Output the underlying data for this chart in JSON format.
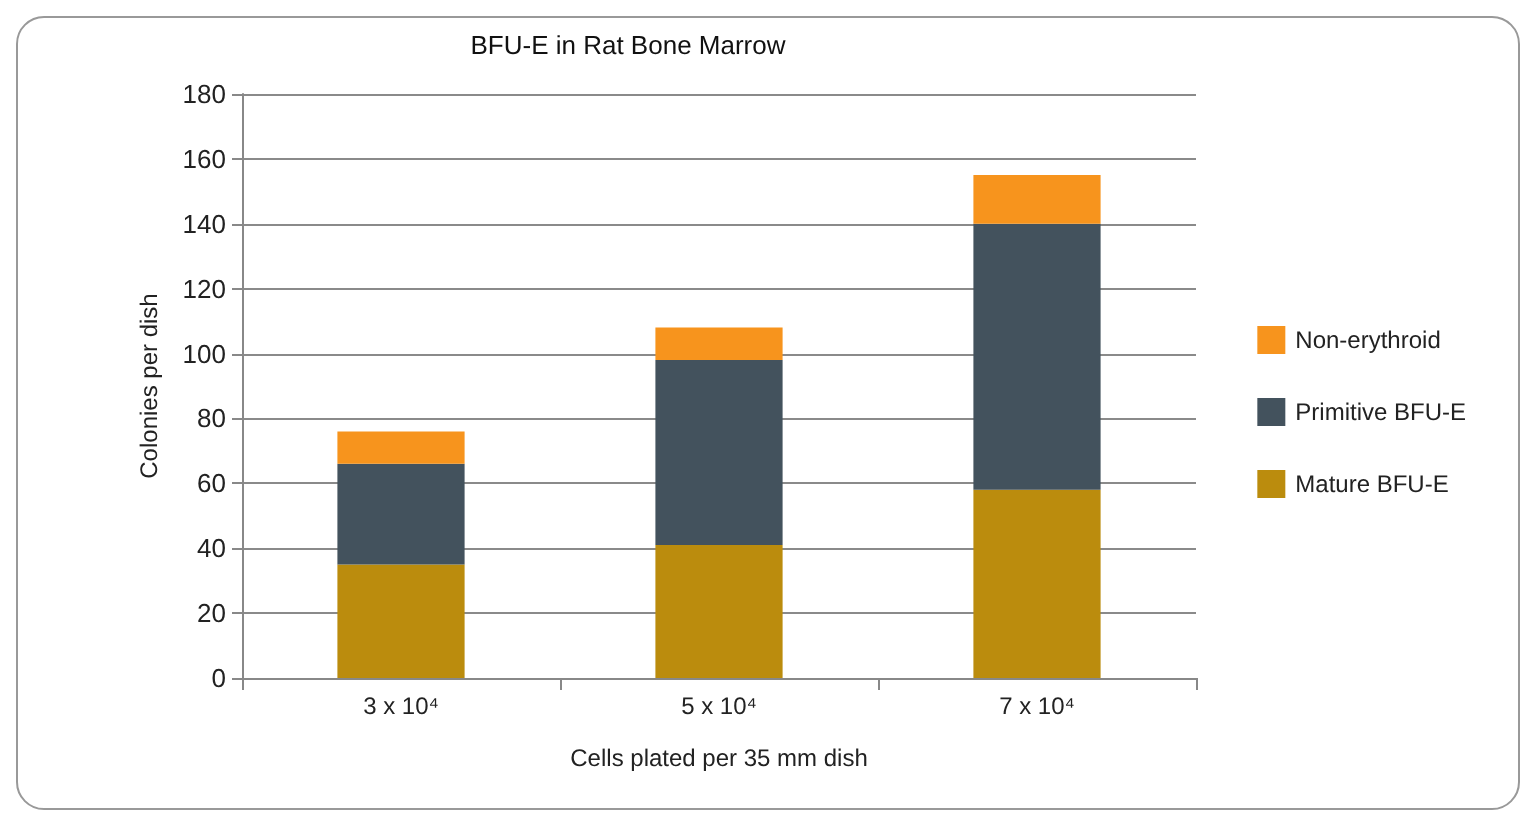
{
  "chart_data": {
    "type": "bar",
    "title": "BFU-E in Rat Bone Marrow",
    "xlabel": "Cells plated per 35 mm dish",
    "ylabel": "Colonies per dish",
    "categories": [
      "3 x 10⁴",
      "5 x 10⁴",
      "7 x 10⁴"
    ],
    "stacked": true,
    "series": [
      {
        "name": "Mature BFU-E",
        "color": "#bb8c0d",
        "values": [
          35,
          41,
          58
        ]
      },
      {
        "name": "Primitive BFU-E",
        "color": "#43525d",
        "values": [
          31,
          57,
          82
        ]
      },
      {
        "name": "Non-erythroid",
        "color": "#f7941d",
        "values": [
          10,
          10,
          15
        ]
      }
    ],
    "ylim": [
      0,
      180
    ],
    "yticks": [
      0,
      20,
      40,
      60,
      80,
      100,
      120,
      140,
      160,
      180
    ],
    "grid": "y",
    "legend": "right"
  }
}
